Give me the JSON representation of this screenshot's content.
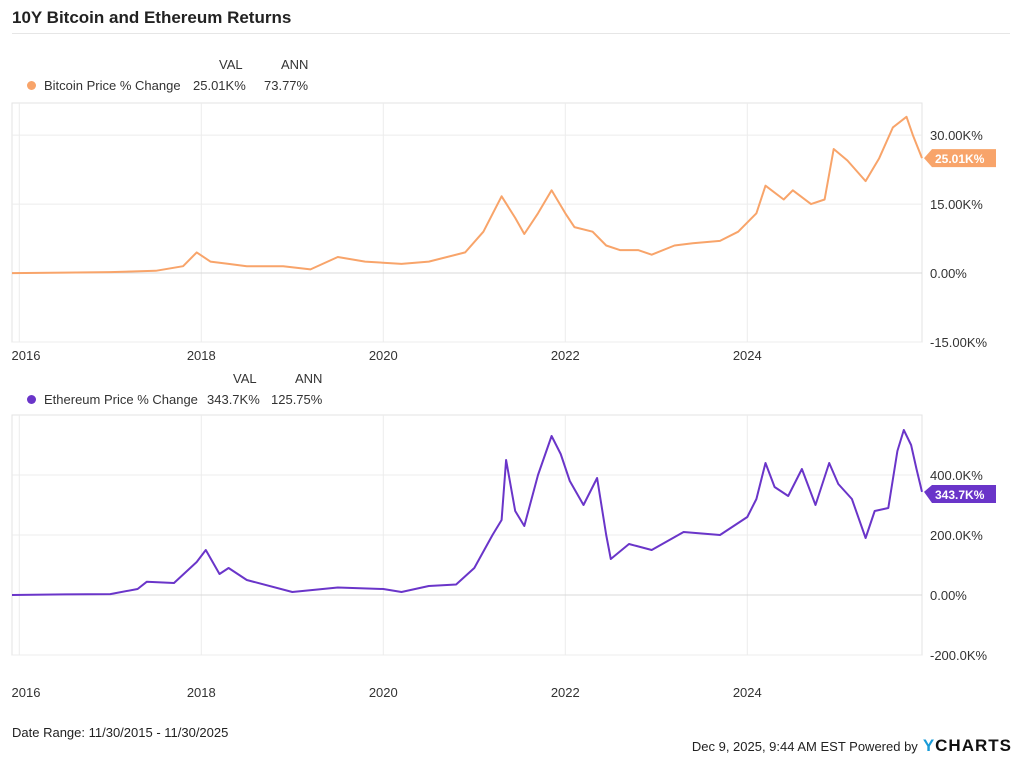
{
  "title": "10Y Bitcoin and Ethereum Returns",
  "footer": {
    "date_range": "Date Range: 11/30/2015 - 11/30/2025",
    "timestamp": "Dec 9, 2025, 9:44 AM EST Powered by",
    "logo": "YCHARTS"
  },
  "chart_data": [
    {
      "type": "line",
      "legend": {
        "col_val": "VAL",
        "col_ann": "ANN"
      },
      "series": [
        {
          "name": "Bitcoin Price % Change",
          "val": "25.01K%",
          "ann": "73.77%",
          "color": "#f8a46a",
          "last_label": "25.01K%",
          "x": [
            2015.92,
            2016.5,
            2017.0,
            2017.5,
            2017.8,
            2017.95,
            2018.1,
            2018.3,
            2018.5,
            2018.9,
            2019.2,
            2019.5,
            2019.8,
            2020.2,
            2020.5,
            2020.9,
            2021.1,
            2021.3,
            2021.45,
            2021.55,
            2021.7,
            2021.85,
            2022.0,
            2022.1,
            2022.3,
            2022.45,
            2022.6,
            2022.8,
            2022.95,
            2023.2,
            2023.4,
            2023.7,
            2023.9,
            2024.1,
            2024.2,
            2024.4,
            2024.5,
            2024.7,
            2024.85,
            2024.95,
            2025.1,
            2025.3,
            2025.45,
            2025.6,
            2025.75,
            2025.82,
            2025.92
          ],
          "y": [
            0,
            0.1,
            0.2,
            0.5,
            1.5,
            4.5,
            2.5,
            2,
            1.5,
            1.5,
            0.8,
            3.5,
            2.5,
            2,
            2.5,
            4.5,
            9,
            16.7,
            12,
            8.5,
            13,
            18,
            13,
            10,
            9,
            6,
            5,
            5,
            4,
            6,
            6.5,
            7,
            9,
            13,
            19,
            16,
            18,
            15,
            16,
            27,
            24.5,
            20,
            25,
            31.7,
            34,
            30,
            25.01
          ]
        }
      ],
      "y_ticks": [
        "30.00K%",
        "15.00K%",
        "0.00%",
        "-15.00K%"
      ],
      "y_tick_values": [
        30,
        15,
        0,
        -15
      ],
      "ylim": [
        -15,
        37
      ],
      "y_unit": "K%",
      "x_ticks": [
        "2016",
        "2018",
        "2020",
        "2022",
        "2024"
      ],
      "xlim": [
        2015.92,
        2025.92
      ],
      "grid": true
    },
    {
      "type": "line",
      "legend": {
        "col_val": "VAL",
        "col_ann": "ANN"
      },
      "series": [
        {
          "name": "Ethereum Price % Change",
          "val": "343.7K%",
          "ann": "125.75%",
          "color": "#6a35c9",
          "last_label": "343.7K%",
          "x": [
            2015.92,
            2016.5,
            2017.0,
            2017.3,
            2017.4,
            2017.7,
            2017.95,
            2018.05,
            2018.2,
            2018.3,
            2018.5,
            2019.0,
            2019.5,
            2020.0,
            2020.2,
            2020.5,
            2020.8,
            2021.0,
            2021.2,
            2021.3,
            2021.35,
            2021.45,
            2021.55,
            2021.7,
            2021.85,
            2021.95,
            2022.05,
            2022.2,
            2022.35,
            2022.45,
            2022.5,
            2022.7,
            2022.95,
            2023.3,
            2023.7,
            2024.0,
            2024.1,
            2024.2,
            2024.3,
            2024.45,
            2024.6,
            2024.75,
            2024.9,
            2025.0,
            2025.15,
            2025.3,
            2025.4,
            2025.55,
            2025.65,
            2025.72,
            2025.8,
            2025.86,
            2025.92
          ],
          "y": [
            0,
            2,
            3,
            20,
            44,
            40,
            110,
            150,
            70,
            90,
            50,
            10,
            25,
            20,
            10,
            30,
            35,
            90,
            200,
            250,
            450,
            280,
            230,
            400,
            530,
            470,
            380,
            300,
            390,
            200,
            120,
            170,
            150,
            210,
            200,
            260,
            320,
            440,
            360,
            330,
            420,
            300,
            440,
            370,
            320,
            190,
            280,
            290,
            480,
            550,
            500,
            420,
            343.7
          ]
        }
      ],
      "y_ticks": [
        "400.0K%",
        "200.0K%",
        "0.00%",
        "-200.0K%"
      ],
      "y_tick_values": [
        400,
        200,
        0,
        -200
      ],
      "ylim": [
        -200,
        600
      ],
      "y_unit": "K%",
      "x_ticks": [
        "2016",
        "2018",
        "2020",
        "2022",
        "2024"
      ],
      "xlim": [
        2015.92,
        2025.92
      ],
      "grid": true
    }
  ]
}
